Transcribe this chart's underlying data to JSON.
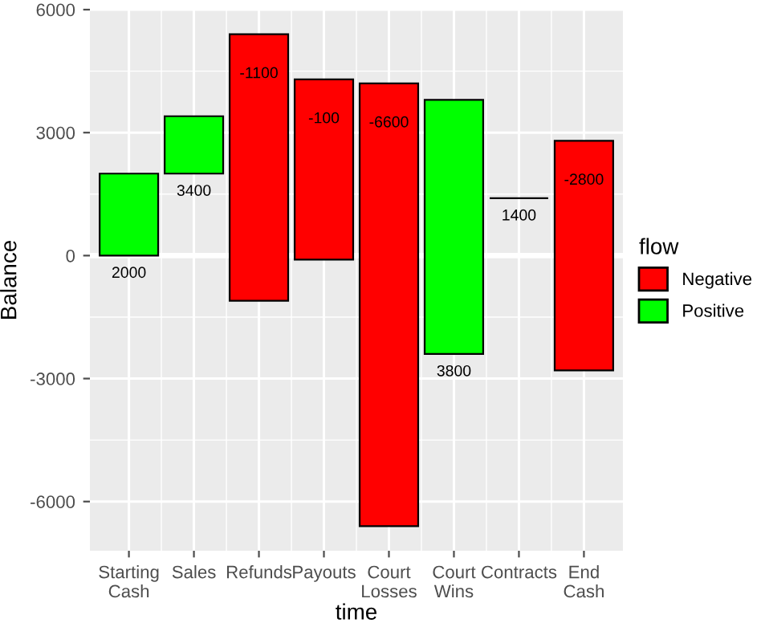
{
  "chart_data": {
    "type": "bar",
    "xlabel": "time",
    "ylabel": "Balance",
    "legend_title": "flow",
    "categories": [
      "Starting\nCash",
      "Sales",
      "Refunds",
      "Payouts",
      "Court\nLosses",
      "Court\nWins",
      "Contracts",
      "End\nCash"
    ],
    "series": [
      {
        "name": "Negative",
        "color": "#ff0000",
        "base": [
          null,
          null,
          -1100,
          -100,
          -6600,
          null,
          null,
          -2800
        ],
        "values": [
          null,
          null,
          6500,
          4400,
          10800,
          null,
          null,
          5600
        ]
      },
      {
        "color": "#000000",
        "base": [
          null,
          null,
          null,
          null,
          null,
          null,
          1400,
          null
        ],
        "values": [
          null,
          null,
          null,
          null,
          null,
          null,
          0,
          null
        ]
      },
      {
        "name": "Positive",
        "color": "#00ff00",
        "base": [
          0,
          2000,
          null,
          null,
          null,
          -2400,
          null,
          null
        ],
        "values": [
          2000,
          1400,
          null,
          null,
          null,
          6200,
          null,
          null
        ]
      }
    ],
    "ylim": [
      -7200,
      6000
    ],
    "yticks": [
      -6000,
      -3000,
      0,
      3000,
      6000
    ],
    "grid": true,
    "legend": "right",
    "ref_lines": [
      {
        "axis": "y",
        "value": 0,
        "color": "#ffffff"
      }
    ],
    "annotations": [
      "2000",
      "3400",
      "-1100",
      "-100",
      "-6600",
      "3800",
      "1400",
      "-2800"
    ]
  }
}
